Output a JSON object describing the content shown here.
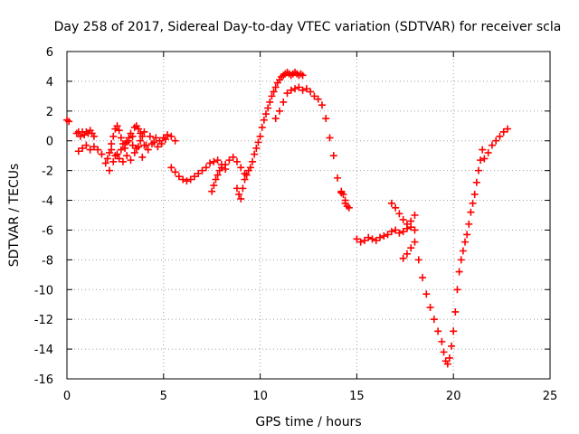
{
  "chart_data": {
    "type": "scatter",
    "title": "Day 258 of 2017, Sidereal Day-to-day VTEC variation (SDTVAR) for receiver scla",
    "xlabel": "GPS time / hours",
    "ylabel": "SDTVAR / TECUs",
    "xlim": [
      0,
      25
    ],
    "ylim": [
      -16,
      6
    ],
    "xticks": [
      "0",
      "5",
      "10",
      "15",
      "20",
      "25"
    ],
    "yticks": [
      "-16",
      "-14",
      "-12",
      "-10",
      "-8",
      "-6",
      "-4",
      "-2",
      "0",
      "2",
      "4",
      "6"
    ],
    "grid": true,
    "marker": "plus",
    "color": "#ff0000",
    "series": [
      {
        "x": [
          0.0,
          0.1,
          0.5,
          0.6,
          0.7,
          0.8,
          0.9,
          1.0,
          1.1,
          1.2,
          1.3,
          1.4,
          0.6,
          0.8,
          1.0,
          1.2,
          1.4,
          1.6,
          1.8,
          2.0,
          2.1,
          2.2,
          2.3,
          2.4,
          2.5,
          2.6,
          2.7,
          2.8,
          2.9,
          3.0,
          3.1,
          3.2,
          3.3,
          3.4,
          3.5,
          3.6,
          3.7,
          3.8,
          3.9,
          4.0,
          2.2,
          2.4,
          2.6,
          2.8,
          3.0,
          3.2,
          3.4,
          3.6,
          3.8,
          4.0,
          4.2,
          4.4,
          4.6,
          4.8,
          5.0,
          5.2,
          5.4,
          5.6,
          2.3,
          2.5,
          2.7,
          2.9,
          3.1,
          3.3,
          3.5,
          3.7,
          3.9,
          4.1,
          4.3,
          4.5,
          4.7,
          4.9,
          5.1,
          5.4,
          5.6,
          5.8,
          6.0,
          6.2,
          6.4,
          6.6,
          6.8,
          7.0,
          7.2,
          7.4,
          7.6,
          7.8,
          8.0,
          8.2,
          7.5,
          7.6,
          7.7,
          7.8,
          7.9,
          8.0,
          8.2,
          8.4,
          8.6,
          8.8,
          9.0,
          9.2,
          8.8,
          8.9,
          9.0,
          9.1,
          9.2,
          9.3,
          9.4,
          9.5,
          9.6,
          9.7,
          9.8,
          9.9,
          10.0,
          10.1,
          10.2,
          10.3,
          10.4,
          10.5,
          10.6,
          10.7,
          10.8,
          10.9,
          11.0,
          11.1,
          11.2,
          11.3,
          11.4,
          11.5,
          11.6,
          11.7,
          11.8,
          11.9,
          12.0,
          12.1,
          12.2,
          10.8,
          11.0,
          11.2,
          11.4,
          11.6,
          11.8,
          12.0,
          12.2,
          12.4,
          12.6,
          12.8,
          13.0,
          13.2,
          13.4,
          13.6,
          13.8,
          14.0,
          14.2,
          14.4,
          14.6,
          14.5,
          14.4,
          14.3,
          14.2,
          15.0,
          15.2,
          15.4,
          15.6,
          15.8,
          16.0,
          16.2,
          16.4,
          16.6,
          16.8,
          17.0,
          17.2,
          17.4,
          17.6,
          17.8,
          18.0,
          16.8,
          17.0,
          17.2,
          17.4,
          17.6,
          17.8,
          18.0,
          17.4,
          17.6,
          17.8,
          18.0,
          18.2,
          18.4,
          18.6,
          18.8,
          19.0,
          19.2,
          19.4,
          19.5,
          19.6,
          19.7,
          19.8,
          19.9,
          20.0,
          20.1,
          20.2,
          20.3,
          20.4,
          20.5,
          20.6,
          20.7,
          20.8,
          20.9,
          21.0,
          21.1,
          21.2,
          21.3,
          21.4,
          21.5,
          21.6,
          21.8,
          22.0,
          22.2,
          22.4,
          22.6,
          22.8
        ],
        "y": [
          1.4,
          1.3,
          0.5,
          0.6,
          0.3,
          0.6,
          0.4,
          0.6,
          0.5,
          0.7,
          0.5,
          0.3,
          -0.7,
          -0.5,
          -0.3,
          -0.6,
          -0.4,
          -0.6,
          -0.9,
          -1.5,
          -1.2,
          -0.8,
          -0.2,
          0.3,
          0.8,
          1.0,
          0.7,
          0.2,
          -0.2,
          -0.5,
          -0.1,
          0.2,
          0.5,
          0.3,
          0.9,
          1.0,
          0.8,
          0.5,
          0.3,
          0.6,
          -2.0,
          -1.4,
          -0.9,
          -0.6,
          -0.2,
          0.0,
          -0.3,
          -0.5,
          0.0,
          -0.3,
          -0.6,
          -0.2,
          0.2,
          0.0,
          0.2,
          0.4,
          0.3,
          0.0,
          -0.6,
          -1.0,
          -1.2,
          -1.4,
          -1.0,
          -1.3,
          -0.8,
          -0.4,
          -1.1,
          -0.3,
          0.3,
          -0.1,
          -0.4,
          -0.2,
          0.1,
          -1.8,
          -2.1,
          -2.4,
          -2.6,
          -2.7,
          -2.6,
          -2.4,
          -2.2,
          -2.0,
          -1.8,
          -1.5,
          -1.4,
          -1.3,
          -1.6,
          -1.9,
          -3.4,
          -3.0,
          -2.6,
          -2.3,
          -2.0,
          -1.8,
          -1.6,
          -1.3,
          -1.1,
          -1.4,
          -1.8,
          -2.2,
          -3.2,
          -3.6,
          -3.9,
          -3.2,
          -2.6,
          -2.3,
          -2.0,
          -1.8,
          -1.4,
          -0.9,
          -0.5,
          -0.1,
          0.3,
          0.9,
          1.4,
          1.8,
          2.2,
          2.6,
          3.0,
          3.3,
          3.6,
          3.9,
          4.1,
          4.3,
          4.4,
          4.5,
          4.6,
          4.5,
          4.4,
          4.5,
          4.6,
          4.5,
          4.4,
          4.5,
          4.4,
          1.5,
          2.0,
          2.6,
          3.2,
          3.4,
          3.5,
          3.6,
          3.4,
          3.5,
          3.3,
          3.0,
          2.8,
          2.4,
          1.5,
          0.2,
          -1.0,
          -2.5,
          -3.5,
          -4.2,
          -4.5,
          -4.4,
          -4.0,
          -3.6,
          -3.4,
          -6.6,
          -6.8,
          -6.7,
          -6.5,
          -6.6,
          -6.7,
          -6.5,
          -6.4,
          -6.3,
          -6.1,
          -6.0,
          -6.2,
          -6.1,
          -5.9,
          -5.8,
          -6.0,
          -4.2,
          -4.5,
          -4.9,
          -5.3,
          -5.6,
          -5.4,
          -5.0,
          -7.9,
          -7.6,
          -7.2,
          -6.8,
          -8.0,
          -9.2,
          -10.3,
          -11.2,
          -12.0,
          -12.8,
          -13.5,
          -14.2,
          -14.8,
          -15.0,
          -14.6,
          -13.8,
          -12.8,
          -11.5,
          -10.0,
          -8.8,
          -8.0,
          -7.4,
          -6.8,
          -6.3,
          -5.6,
          -4.8,
          -4.2,
          -3.6,
          -2.8,
          -2.0,
          -1.3,
          -0.6,
          -1.2,
          -0.8,
          -0.3,
          0.0,
          0.3,
          0.6,
          0.8
        ]
      }
    ]
  }
}
